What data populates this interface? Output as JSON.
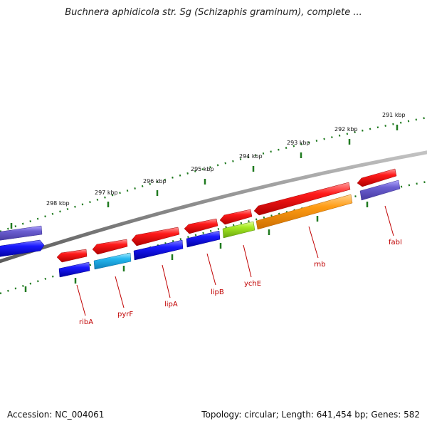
{
  "header": {
    "title": "Buchnera aphidicola str. Sg (Schizaphis graminum), complete ..."
  },
  "footer": {
    "accession": "Accession: NC_004061",
    "summary": "Topology: circular; Length: 641,454 bp; Genes: 582"
  },
  "scale_ticks": [
    {
      "label": "298 kbp"
    },
    {
      "label": "297 kbp"
    },
    {
      "label": "296 kbp"
    },
    {
      "label": "295 kbp"
    },
    {
      "label": "294 kbp"
    },
    {
      "label": "293 kbp"
    },
    {
      "label": "292 kbp"
    },
    {
      "label": "291 kbp"
    }
  ],
  "gene_labels": [
    {
      "name": "ribA"
    },
    {
      "name": "pyrF"
    },
    {
      "name": "lipA"
    },
    {
      "name": "lipB"
    },
    {
      "name": "ychE"
    },
    {
      "name": "rnb"
    },
    {
      "name": "fabI"
    }
  ],
  "colors": {
    "backbone": "#808080",
    "ruler": "#1f7a1f",
    "label": "#c00000",
    "feature_red": "#ee1111",
    "feature_blue": "#1515dd",
    "feature_cyan": "#2ab8ee",
    "feature_lime": "#9be31b",
    "feature_orange": "#ff9a10",
    "feature_violet": "#6a5acd"
  }
}
